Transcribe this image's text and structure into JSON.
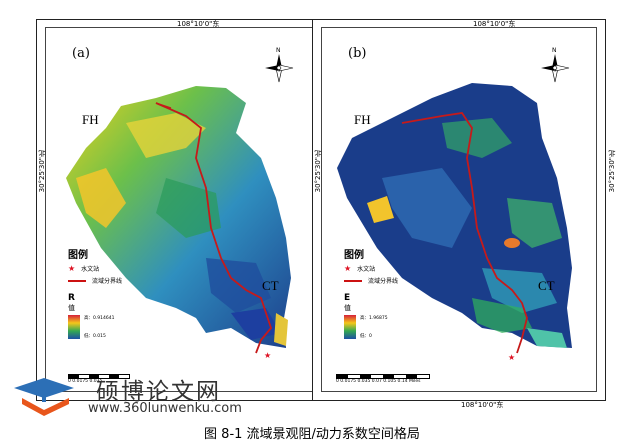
{
  "caption": "图 8-1  流域景观阻/动力系数空间格局",
  "panels": [
    {
      "id": "(a)",
      "top_coord": "108°10'0\"东",
      "side_coord": "30°25'30\"北",
      "label_fh": "FH",
      "label_ct": "CT",
      "legend": {
        "title": "图例",
        "station": "水文站",
        "boundary": "流域分界线",
        "ramp_head": "R",
        "ramp_sub": "值",
        "high": "高：0.914641",
        "low": "低：0.015"
      },
      "scale": "0 0.0175 0.035"
    },
    {
      "id": "(b)",
      "top_coord": "108°10'0\"东",
      "side_coord": "30°25'30\"北",
      "bottom_coord": "108°10'0\"东",
      "label_fh": "FH",
      "label_ct": "CT",
      "legend": {
        "title": "图例",
        "station": "水文站",
        "boundary": "流域分界线",
        "ramp_head": "E",
        "ramp_sub": "值",
        "high": "高：1.96875",
        "low": "低：0"
      },
      "scale": "0 0.0175 0.035  0.07   0.105   0.14",
      "scale_unit": "Miles"
    }
  ],
  "colors": {
    "ramp_a": [
      "#d6203a",
      "#f5c71a",
      "#34a853",
      "#1e4fa5"
    ],
    "ramp_b": [
      "#d6203a",
      "#f5c71a",
      "#34a853",
      "#1e4fa5"
    ],
    "boundary": "#c61a1a"
  },
  "watermark": {
    "name": "硕博论文网",
    "url": "www.360lunwenku.com"
  }
}
